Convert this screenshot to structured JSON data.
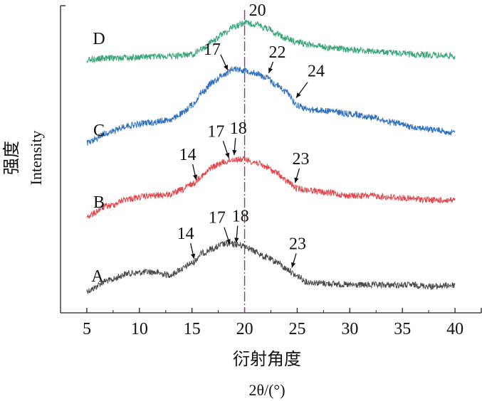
{
  "chart_data": {
    "type": "line",
    "title": "",
    "xlabel": "衍射角度",
    "xlabel_unit": "2θ/(°)",
    "ylabel": "强度",
    "ylabel_en": "Intensity",
    "xlim": [
      2.5,
      42.5
    ],
    "x_ticks": [
      5,
      10,
      15,
      20,
      25,
      30,
      35,
      40
    ],
    "x_tick_labels": [
      "5",
      "10",
      "15",
      "20",
      "25",
      "30",
      "35",
      "40"
    ],
    "y_ticks_shown": false,
    "grid": false,
    "legend": "none",
    "reference_line": {
      "x": 20,
      "style": "dash-dot",
      "color": "#8e3a8e"
    },
    "series": [
      {
        "name": "A",
        "color": "#4a4a4a",
        "x": [
          5,
          7,
          9,
          11,
          13,
          14,
          15,
          16,
          17,
          18,
          19,
          20,
          21,
          22,
          23,
          24,
          25,
          26,
          28,
          30,
          32,
          34,
          36,
          38,
          40
        ],
        "y": [
          -0.02,
          0.05,
          0.1,
          0.11,
          0.09,
          0.13,
          0.17,
          0.24,
          0.27,
          0.3,
          0.3,
          0.29,
          0.25,
          0.21,
          0.18,
          0.13,
          0.08,
          0.04,
          0.03,
          0.02,
          0.02,
          0.02,
          0.02,
          0.01,
          0.02
        ],
        "annotations": [
          {
            "label": "14",
            "x": 15.2,
            "y": 0.17
          },
          {
            "label": "17",
            "x": 18.6,
            "y": 0.27
          },
          {
            "label": "18",
            "x": 19.2,
            "y": 0.28
          },
          {
            "label": "23",
            "x": 24.5,
            "y": 0.11
          }
        ]
      },
      {
        "name": "B",
        "color": "#e0484e",
        "x": [
          5,
          7,
          9,
          11,
          13,
          14,
          15,
          16,
          17,
          18,
          19,
          20,
          21,
          22,
          23,
          24,
          25,
          26,
          28,
          30,
          32,
          34,
          36,
          38,
          40
        ],
        "y": [
          -0.02,
          0.05,
          0.1,
          0.12,
          0.13,
          0.16,
          0.2,
          0.26,
          0.32,
          0.35,
          0.37,
          0.37,
          0.35,
          0.32,
          0.28,
          0.22,
          0.17,
          0.16,
          0.14,
          0.12,
          0.12,
          0.11,
          0.1,
          0.09,
          0.09
        ],
        "annotations": [
          {
            "label": "14",
            "x": 15.4,
            "y": 0.2
          },
          {
            "label": "17",
            "x": 18.5,
            "y": 0.35
          },
          {
            "label": "18",
            "x": 19.0,
            "y": 0.37
          },
          {
            "label": "23",
            "x": 24.8,
            "y": 0.18
          }
        ]
      },
      {
        "name": "C",
        "color": "#2e6fc0",
        "x": [
          5,
          7,
          9,
          11,
          13,
          14,
          15,
          16,
          17,
          18,
          19,
          20,
          21,
          22,
          23,
          24,
          25,
          26,
          28,
          30,
          32,
          34,
          36,
          38,
          40
        ],
        "y": [
          -0.02,
          0.05,
          0.1,
          0.12,
          0.14,
          0.18,
          0.24,
          0.33,
          0.4,
          0.45,
          0.49,
          0.48,
          0.46,
          0.43,
          0.38,
          0.33,
          0.24,
          0.21,
          0.2,
          0.18,
          0.16,
          0.12,
          0.09,
          0.07,
          0.05
        ],
        "annotations": [
          {
            "label": "17",
            "x": 18.4,
            "y": 0.45
          },
          {
            "label": "22",
            "x": 22.3,
            "y": 0.43
          },
          {
            "label": "24",
            "x": 24.9,
            "y": 0.26
          }
        ]
      },
      {
        "name": "D",
        "color": "#3aa57a",
        "x": [
          5,
          7,
          9,
          11,
          13,
          15,
          16,
          17,
          18,
          19,
          20,
          21,
          22,
          23,
          24,
          25,
          26,
          28,
          30,
          32,
          34,
          36,
          38,
          40
        ],
        "y": [
          -0.02,
          0.0,
          0.01,
          0.02,
          0.03,
          0.05,
          0.12,
          0.22,
          0.32,
          0.41,
          0.45,
          0.44,
          0.39,
          0.32,
          0.25,
          0.21,
          0.18,
          0.14,
          0.11,
          0.09,
          0.07,
          0.05,
          0.04,
          0.03
        ],
        "annotations": [
          {
            "label": "20",
            "x": 20.0,
            "y": 0.45
          }
        ]
      }
    ]
  }
}
